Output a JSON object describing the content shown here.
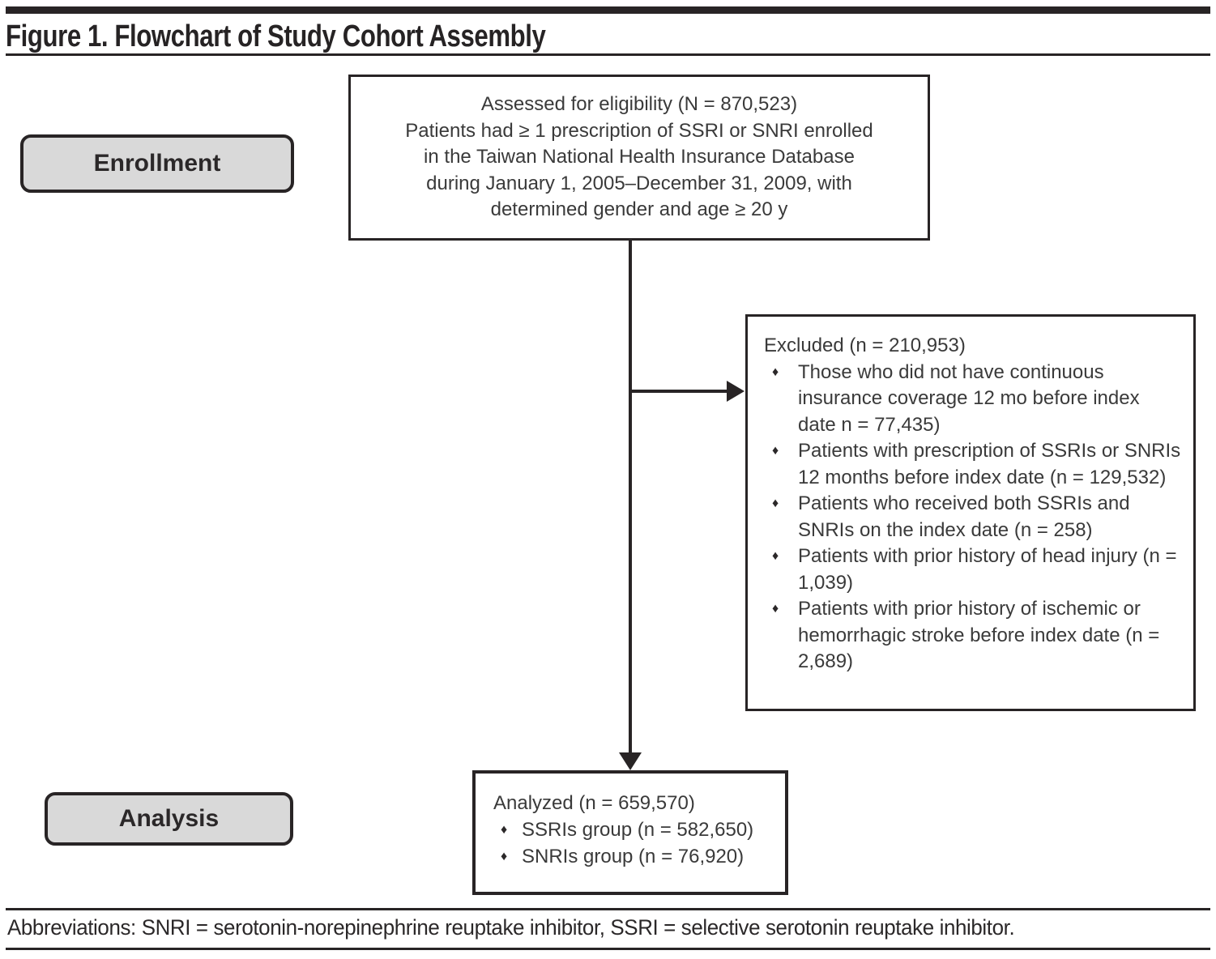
{
  "figure": {
    "title": "Figure 1. Flowchart of Study Cohort Assembly",
    "footnote": "Abbreviations: SNRI = serotonin-norepinephrine reuptake inhibitor, SSRI = selective serotonin reuptake inhibitor."
  },
  "stages": {
    "enrollment_label": "Enrollment",
    "analysis_label": "Analysis"
  },
  "bullet_glyph": "♦",
  "eligibility_box": {
    "lines": [
      "Assessed for eligibility (N = 870,523)",
      "Patients had ≥ 1 prescription of SSRI or SNRI enrolled",
      "in the Taiwan National Health Insurance Database",
      "during January 1, 2005–December 31, 2009, with",
      "determined gender and age ≥ 20 y"
    ]
  },
  "excluded_box": {
    "header": "Excluded (n = 210,953)",
    "bullets": [
      "Those who did not have continuous insurance coverage 12 mo before index date n = 77,435)",
      "Patients with prescription of SSRIs or SNRIs 12 months before index date (n = 129,532)",
      "Patients who received both SSRIs and SNRIs on the index date (n = 258)",
      "Patients with prior history of head injury (n = 1,039)",
      "Patients with prior history of ischemic or hemorrhagic stroke before index date (n = 2,689)"
    ]
  },
  "analyzed_box": {
    "header": "Analyzed (n = 659,570)",
    "bullets": [
      "SSRIs group (n = 582,650)",
      "SNRIs group (n = 76,920)"
    ]
  },
  "colors": {
    "ink": "#282425",
    "label_fill": "#d9d9d9"
  }
}
